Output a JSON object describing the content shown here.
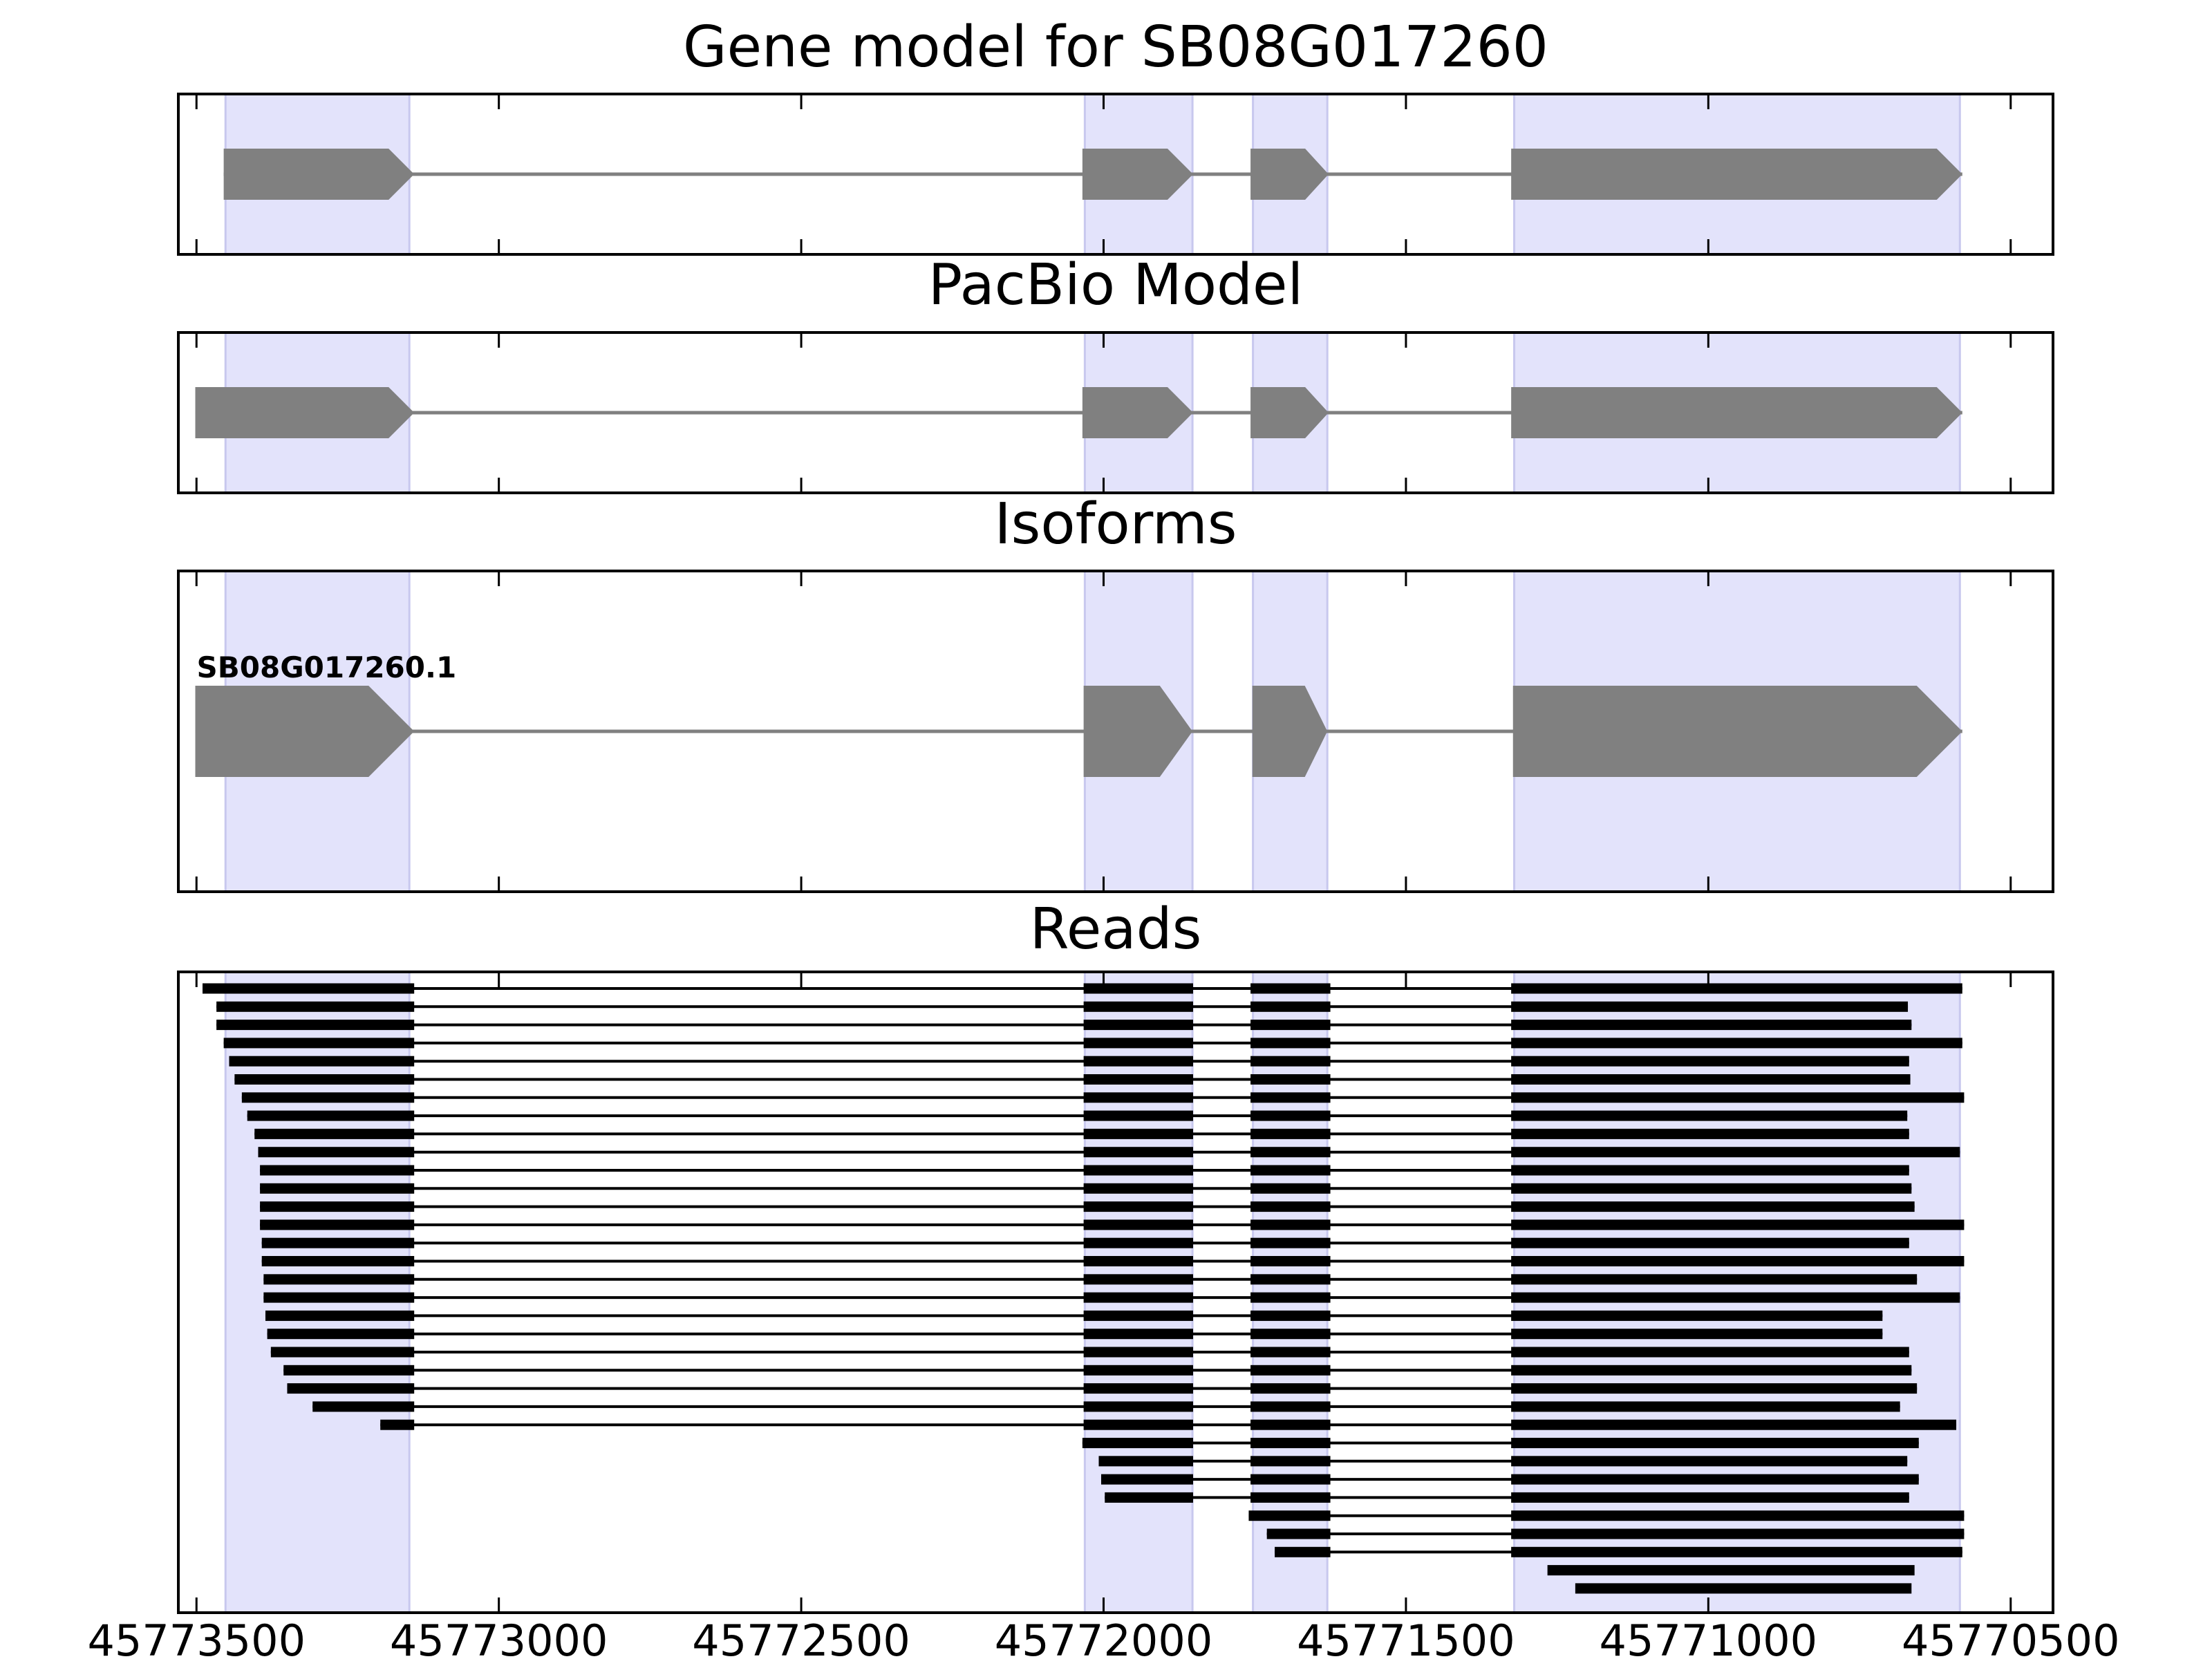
{
  "figure_title": "Gene model for SB08G017260",
  "colors": {
    "background": "#ffffff",
    "exon_band": "#e3e3fb",
    "exon_band_edge": "#c8c8ee",
    "gene_block": "#808080",
    "intron_line": "#808080",
    "read": "#000000",
    "axis": "#000000"
  },
  "chart_data": [
    {
      "type": "gene_model",
      "title": "Gene model for SB08G017260",
      "shared_x": true,
      "x_axis_reversed": true,
      "xlim": [
        45773530,
        45770430
      ],
      "xticks": [
        45773500,
        45773000,
        45772500,
        45772000,
        45771500,
        45771000,
        45770500
      ],
      "xtick_labels": [
        "45773500",
        "45773000",
        "45772500",
        "45772000",
        "45771500",
        "45771000",
        "45770500"
      ],
      "exon_bands": [
        [
          45773452,
          45773148
        ],
        [
          45772031,
          45771853
        ],
        [
          45771753,
          45771630
        ],
        [
          45771321,
          45770584
        ]
      ],
      "exons": [
        [
          45773455,
          45773140
        ],
        [
          45772035,
          45771852
        ],
        [
          45771757,
          45771628
        ],
        [
          45771326,
          45770580
        ]
      ],
      "strand": "-"
    },
    {
      "type": "gene_model",
      "title": "PacBio Model",
      "exons": [
        [
          45773502,
          45773140
        ],
        [
          45772035,
          45771852
        ],
        [
          45771757,
          45771628
        ],
        [
          45771326,
          45770580
        ]
      ],
      "strand": "-"
    },
    {
      "type": "gene_model",
      "title": "Isoforms",
      "isoforms": [
        {
          "label": "SB08G017260.1",
          "exons": [
            [
              45773502,
              45773140
            ],
            [
              45772033,
              45771853
            ],
            [
              45771754,
              45771630
            ],
            [
              45771323,
              45770580
            ]
          ]
        }
      ]
    },
    {
      "type": "reads",
      "title": "Reads",
      "reads": [
        [
          [
            45773490,
            45773140
          ],
          [
            45772033,
            45771852
          ],
          [
            45771757,
            45771625
          ],
          [
            45771326,
            45770580
          ]
        ],
        [
          [
            45773467,
            45773140
          ],
          [
            45772033,
            45771852
          ],
          [
            45771757,
            45771625
          ],
          [
            45771326,
            45770670
          ]
        ],
        [
          [
            45773467,
            45773140
          ],
          [
            45772033,
            45771852
          ],
          [
            45771757,
            45771625
          ],
          [
            45771326,
            45770664
          ]
        ],
        [
          [
            45773455,
            45773140
          ],
          [
            45772033,
            45771852
          ],
          [
            45771757,
            45771625
          ],
          [
            45771326,
            45770580
          ]
        ],
        [
          [
            45773446,
            45773140
          ],
          [
            45772033,
            45771852
          ],
          [
            45771757,
            45771625
          ],
          [
            45771326,
            45770668
          ]
        ],
        [
          [
            45773437,
            45773140
          ],
          [
            45772033,
            45771852
          ],
          [
            45771757,
            45771625
          ],
          [
            45771326,
            45770666
          ]
        ],
        [
          [
            45773425,
            45773140
          ],
          [
            45772033,
            45771852
          ],
          [
            45771757,
            45771625
          ],
          [
            45771326,
            45770577
          ]
        ],
        [
          [
            45773416,
            45773140
          ],
          [
            45772033,
            45771852
          ],
          [
            45771757,
            45771625
          ],
          [
            45771326,
            45770671
          ]
        ],
        [
          [
            45773404,
            45773140
          ],
          [
            45772033,
            45771852
          ],
          [
            45771757,
            45771625
          ],
          [
            45771326,
            45770668
          ]
        ],
        [
          [
            45773398,
            45773140
          ],
          [
            45772033,
            45771852
          ],
          [
            45771757,
            45771625
          ],
          [
            45771326,
            45770584
          ]
        ],
        [
          [
            45773395,
            45773140
          ],
          [
            45772033,
            45771852
          ],
          [
            45771757,
            45771625
          ],
          [
            45771326,
            45770668
          ]
        ],
        [
          [
            45773395,
            45773140
          ],
          [
            45772033,
            45771852
          ],
          [
            45771757,
            45771625
          ],
          [
            45771326,
            45770664
          ]
        ],
        [
          [
            45773395,
            45773140
          ],
          [
            45772033,
            45771852
          ],
          [
            45771757,
            45771625
          ],
          [
            45771326,
            45770659
          ]
        ],
        [
          [
            45773395,
            45773140
          ],
          [
            45772033,
            45771852
          ],
          [
            45771757,
            45771625
          ],
          [
            45771326,
            45770577
          ]
        ],
        [
          [
            45773392,
            45773140
          ],
          [
            45772033,
            45771852
          ],
          [
            45771757,
            45771625
          ],
          [
            45771326,
            45770668
          ]
        ],
        [
          [
            45773392,
            45773140
          ],
          [
            45772033,
            45771852
          ],
          [
            45771757,
            45771625
          ],
          [
            45771326,
            45770577
          ]
        ],
        [
          [
            45773389,
            45773140
          ],
          [
            45772033,
            45771852
          ],
          [
            45771757,
            45771625
          ],
          [
            45771326,
            45770655
          ]
        ],
        [
          [
            45773389,
            45773140
          ],
          [
            45772033,
            45771852
          ],
          [
            45771757,
            45771625
          ],
          [
            45771326,
            45770584
          ]
        ],
        [
          [
            45773386,
            45773140
          ],
          [
            45772033,
            45771852
          ],
          [
            45771757,
            45771625
          ],
          [
            45771326,
            45770712
          ]
        ],
        [
          [
            45773383,
            45773140
          ],
          [
            45772033,
            45771852
          ],
          [
            45771757,
            45771625
          ],
          [
            45771326,
            45770712
          ]
        ],
        [
          [
            45773377,
            45773140
          ],
          [
            45772033,
            45771852
          ],
          [
            45771757,
            45771625
          ],
          [
            45771326,
            45770668
          ]
        ],
        [
          [
            45773356,
            45773140
          ],
          [
            45772033,
            45771852
          ],
          [
            45771757,
            45771625
          ],
          [
            45771326,
            45770664
          ]
        ],
        [
          [
            45773350,
            45773140
          ],
          [
            45772033,
            45771852
          ],
          [
            45771757,
            45771625
          ],
          [
            45771326,
            45770655
          ]
        ],
        [
          [
            45773308,
            45773140
          ],
          [
            45772033,
            45771852
          ],
          [
            45771757,
            45771625
          ],
          [
            45771326,
            45770683
          ]
        ],
        [
          [
            45773196,
            45773140
          ],
          [
            45772033,
            45771852
          ],
          [
            45771757,
            45771625
          ],
          [
            45771326,
            45770590
          ]
        ],
        [
          [
            45772035,
            45771852
          ],
          [
            45771757,
            45771625
          ],
          [
            45771326,
            45770652
          ]
        ],
        [
          [
            45772008,
            45771852
          ],
          [
            45771757,
            45771625
          ],
          [
            45771326,
            45770671
          ]
        ],
        [
          [
            45772004,
            45771852
          ],
          [
            45771757,
            45771625
          ],
          [
            45771326,
            45770652
          ]
        ],
        [
          [
            45771998,
            45771852
          ],
          [
            45771757,
            45771625
          ],
          [
            45771326,
            45770668
          ]
        ],
        [
          [
            45771760,
            45771625
          ],
          [
            45771326,
            45770577
          ]
        ],
        [
          [
            45771730,
            45771625
          ],
          [
            45771326,
            45770577
          ]
        ],
        [
          [
            45771717,
            45771625
          ],
          [
            45771326,
            45770580
          ]
        ],
        [
          [
            45771266,
            45770659
          ]
        ],
        [
          [
            45771220,
            45770664
          ]
        ]
      ]
    }
  ]
}
